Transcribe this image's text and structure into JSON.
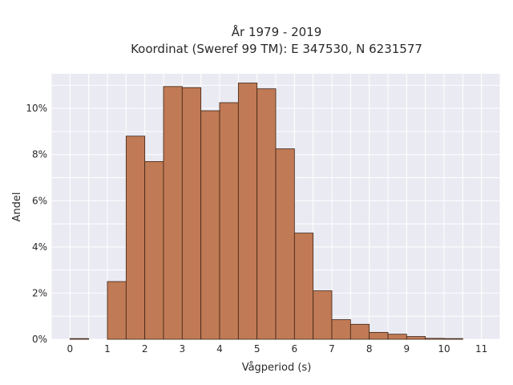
{
  "chart_data": {
    "type": "bar",
    "title_lines": [
      "År 1979 - 2019",
      "Koordinat (Sweref 99 TM): E 347530, N 6231577"
    ],
    "xlabel": "Vågperiod (s)",
    "ylabel": "Andel",
    "xlim": [
      -0.5,
      11.5
    ],
    "ylim": [
      0,
      11.5
    ],
    "x_ticks": [
      0,
      1,
      2,
      3,
      4,
      5,
      6,
      7,
      8,
      9,
      10,
      11
    ],
    "y_ticks": [
      0,
      2,
      4,
      6,
      8,
      10
    ],
    "y_tick_suffix": "%",
    "grid": true,
    "bar_color": "#c07a55",
    "bar_edge_color": "#3d2416",
    "plot_background": "#eaeaf2",
    "bin_width": 0.5,
    "bins": [
      {
        "start": 0.0,
        "value": 0.03
      },
      {
        "start": 1.0,
        "value": 2.5
      },
      {
        "start": 1.5,
        "value": 8.8
      },
      {
        "start": 2.0,
        "value": 7.7
      },
      {
        "start": 2.5,
        "value": 10.95
      },
      {
        "start": 3.0,
        "value": 10.9
      },
      {
        "start": 3.5,
        "value": 9.9
      },
      {
        "start": 4.0,
        "value": 10.25
      },
      {
        "start": 4.5,
        "value": 11.1
      },
      {
        "start": 5.0,
        "value": 10.85
      },
      {
        "start": 5.5,
        "value": 8.25
      },
      {
        "start": 6.0,
        "value": 4.6
      },
      {
        "start": 6.5,
        "value": 2.1
      },
      {
        "start": 7.0,
        "value": 0.85
      },
      {
        "start": 7.5,
        "value": 0.65
      },
      {
        "start": 8.0,
        "value": 0.3
      },
      {
        "start": 8.5,
        "value": 0.22
      },
      {
        "start": 9.0,
        "value": 0.12
      },
      {
        "start": 9.5,
        "value": 0.04
      },
      {
        "start": 10.0,
        "value": 0.03
      }
    ]
  }
}
